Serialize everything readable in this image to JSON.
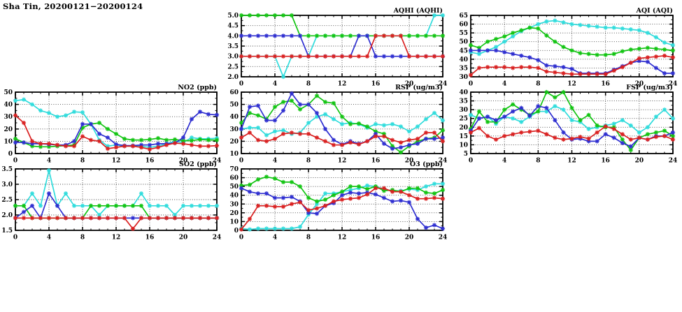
{
  "page_title": "Sha Tin, 20200121−20200124",
  "colors": {
    "red": "#d92020",
    "green": "#12c412",
    "blue": "#2e2ed0",
    "cyan": "#30dcdc",
    "axis": "#000000",
    "grid": "#474747",
    "text": "#000000"
  },
  "chart_data": [
    {
      "id": "aqhi",
      "type": "line",
      "title": "AQHI (AQHI)",
      "row": 0,
      "col": 1,
      "xlim": [
        0,
        24
      ],
      "xtick_major": 4,
      "xtick_minor": 1,
      "ylim": [
        2.0,
        5.0
      ],
      "ytick": 0.5,
      "ydec": 1,
      "grid": true,
      "legend": "none",
      "series": [
        {
          "name": "cyan",
          "values": [
            3,
            3,
            3,
            3,
            3,
            2,
            3,
            3,
            3,
            4,
            4,
            4,
            4,
            4,
            4,
            4,
            4,
            4,
            4,
            4,
            4,
            4,
            4,
            5,
            5
          ]
        },
        {
          "name": "green",
          "values": [
            5,
            5,
            5,
            5,
            5,
            5,
            5,
            4,
            4,
            4,
            4,
            4,
            4,
            4,
            4,
            4,
            4,
            4,
            4,
            4,
            4,
            4,
            4,
            4,
            4
          ]
        },
        {
          "name": "blue",
          "values": [
            4,
            4,
            4,
            4,
            4,
            4,
            4,
            4,
            3,
            3,
            3,
            3,
            3,
            3,
            4,
            4,
            3,
            3,
            3,
            3,
            3,
            3,
            3,
            3,
            3
          ]
        },
        {
          "name": "red",
          "values": [
            3,
            3,
            3,
            3,
            3,
            3,
            3,
            3,
            3,
            3,
            3,
            3,
            3,
            3,
            3,
            3,
            4,
            4,
            4,
            4,
            3,
            3,
            3,
            3,
            3
          ]
        }
      ]
    },
    {
      "id": "aqi",
      "type": "line",
      "title": "AQI (AQI)",
      "row": 0,
      "col": 2,
      "xlim": [
        0,
        24
      ],
      "xtick_major": 4,
      "xtick_minor": 1,
      "ylim": [
        30,
        65
      ],
      "ytick": 5,
      "ydec": 0,
      "grid": true,
      "legend": "none",
      "series": [
        {
          "name": "cyan",
          "values": [
            44,
            43,
            45,
            47,
            50,
            53,
            56,
            58,
            60,
            61.5,
            62,
            61,
            60,
            59.5,
            59,
            58.5,
            58,
            58,
            57.5,
            57,
            56.5,
            55,
            52.5,
            49.5,
            48
          ]
        },
        {
          "name": "green",
          "values": [
            48,
            46.5,
            50,
            51.5,
            53,
            55,
            56.5,
            58,
            57.5,
            53.5,
            50,
            47,
            45,
            43.5,
            43,
            42.5,
            42.5,
            43,
            44.5,
            45.5,
            46,
            46.5,
            46,
            45.5,
            45
          ]
        },
        {
          "name": "blue",
          "values": [
            45,
            45,
            45,
            45,
            44,
            43,
            42,
            41,
            39.5,
            36.5,
            36,
            35.5,
            34.5,
            32,
            32,
            32,
            32,
            34,
            36,
            38,
            39,
            38.5,
            35,
            32,
            32
          ]
        },
        {
          "name": "red",
          "values": [
            31,
            35,
            35.5,
            35.5,
            35.5,
            35,
            35.5,
            35.5,
            35,
            33,
            32.5,
            32,
            31.5,
            31.5,
            31.5,
            31.5,
            31.5,
            33.5,
            35.5,
            38,
            40.5,
            41,
            41.5,
            42,
            41
          ]
        }
      ]
    },
    {
      "id": "no2",
      "type": "line",
      "title": "NO2 (ppb)",
      "row": 1,
      "col": 0,
      "xlim": [
        0,
        24
      ],
      "xtick_major": 4,
      "xtick_minor": 1,
      "ylim": [
        0,
        50
      ],
      "ytick": 10,
      "ydec": 0,
      "grid": true,
      "legend": "none",
      "series": [
        {
          "name": "cyan",
          "values": [
            43,
            44,
            40,
            35,
            33,
            30,
            31,
            34,
            33.5,
            24,
            11,
            6,
            7,
            6,
            6,
            6,
            5,
            6,
            8,
            10,
            9,
            13,
            12,
            12,
            12.5
          ]
        },
        {
          "name": "green",
          "values": [
            12,
            9,
            6,
            5.5,
            5.5,
            6,
            6.5,
            7,
            21,
            24,
            25,
            20,
            16,
            12,
            11,
            11,
            11.5,
            12.5,
            11,
            11.5,
            10.5,
            10.5,
            11.5,
            11,
            11
          ]
        },
        {
          "name": "blue",
          "values": [
            9,
            9,
            8,
            8,
            7.5,
            7,
            7,
            10,
            24,
            24,
            16,
            13,
            7.5,
            6.5,
            6.5,
            7,
            7,
            8,
            8,
            8.5,
            13,
            28,
            34,
            32,
            31.5
          ]
        },
        {
          "name": "red",
          "values": [
            31,
            25,
            10,
            8,
            8,
            7,
            6,
            6,
            14,
            11,
            10,
            4,
            5,
            6,
            6,
            5,
            3.5,
            5,
            7,
            8.5,
            8,
            7,
            6,
            6,
            6.5
          ]
        }
      ]
    },
    {
      "id": "rsp",
      "type": "line",
      "title": "RSP (ug/m3)",
      "row": 1,
      "col": 1,
      "xlim": [
        0,
        24
      ],
      "xtick_major": 4,
      "xtick_minor": 1,
      "ylim": [
        10,
        60
      ],
      "ytick": 10,
      "ydec": 0,
      "grid": true,
      "legend": "none",
      "series": [
        {
          "name": "cyan",
          "values": [
            30,
            31,
            31,
            25,
            28,
            29,
            26,
            27,
            35,
            40,
            42,
            38,
            34,
            35,
            34,
            31,
            34,
            33,
            34,
            32,
            28,
            32,
            38,
            43,
            37
          ]
        },
        {
          "name": "green",
          "values": [
            35,
            43,
            41,
            38,
            48,
            52,
            53,
            46,
            50,
            57,
            52,
            51,
            40,
            34,
            34.5,
            32,
            28,
            26,
            16,
            11,
            16,
            20,
            22,
            23,
            29
          ]
        },
        {
          "name": "blue",
          "values": [
            30,
            48,
            49,
            37,
            37,
            45,
            59,
            50,
            50,
            43,
            30,
            21,
            17.5,
            20,
            18,
            20,
            26,
            18,
            14,
            15,
            17,
            18,
            22,
            22,
            23
          ]
        },
        {
          "name": "red",
          "values": [
            23,
            27,
            21,
            20,
            22,
            26,
            27,
            26,
            26,
            23,
            20,
            17,
            17,
            19,
            17.5,
            20,
            24,
            24,
            21,
            19,
            21,
            22,
            27,
            27,
            20
          ]
        }
      ]
    },
    {
      "id": "fsp",
      "type": "line",
      "title": "FSP (ug/m3)",
      "row": 1,
      "col": 2,
      "xlim": [
        0,
        24
      ],
      "xtick_major": 4,
      "xtick_minor": 1,
      "ylim": [
        5,
        40
      ],
      "ytick": 5,
      "ydec": 0,
      "grid": true,
      "legend": "none",
      "series": [
        {
          "name": "cyan",
          "values": [
            27,
            25,
            26,
            22,
            26,
            25,
            23,
            26,
            29,
            29,
            32,
            30,
            24,
            23,
            19,
            20,
            21,
            22,
            24,
            21,
            17,
            20,
            26,
            30,
            25
          ]
        },
        {
          "name": "green",
          "values": [
            19,
            29,
            23,
            23,
            30,
            33,
            30,
            27,
            29,
            40,
            37,
            40,
            31,
            24,
            27,
            21,
            20,
            20,
            13,
            7,
            14,
            16,
            17,
            18,
            15
          ]
        },
        {
          "name": "blue",
          "values": [
            18,
            25,
            26,
            24,
            26,
            29,
            31,
            26.5,
            32,
            31,
            24,
            17,
            13,
            13.5,
            12,
            12,
            16,
            14,
            11,
            9,
            14,
            13,
            15,
            15,
            17
          ]
        },
        {
          "name": "red",
          "values": [
            17,
            19.5,
            15,
            13,
            15,
            16,
            17,
            17.5,
            18,
            16,
            14,
            13,
            13.5,
            14.5,
            13.5,
            17,
            20.5,
            19,
            16,
            13,
            14,
            13,
            14.5,
            15,
            13
          ]
        }
      ]
    },
    {
      "id": "so2",
      "type": "line",
      "title": "SO2 (ppb)",
      "row": 2,
      "col": 0,
      "xlim": [
        0,
        24
      ],
      "xtick_major": 4,
      "xtick_minor": 1,
      "ylim": [
        1.5,
        3.5
      ],
      "ytick": 0.5,
      "ydec": 1,
      "grid": true,
      "legend": "none",
      "series": [
        {
          "name": "cyan",
          "values": [
            2.3,
            2.3,
            2.7,
            2.3,
            3.45,
            2.3,
            2.7,
            2.3,
            2.3,
            2.3,
            2.0,
            2.3,
            2.3,
            2.3,
            2.3,
            2.7,
            2.3,
            2.3,
            2.3,
            2.0,
            2.3,
            2.3,
            2.3,
            2.3,
            2.3
          ]
        },
        {
          "name": "green",
          "values": [
            2.3,
            2.3,
            1.9,
            1.9,
            1.9,
            1.9,
            1.9,
            1.9,
            1.9,
            2.3,
            2.3,
            2.3,
            2.3,
            2.3,
            2.3,
            2.3,
            1.9,
            1.9,
            1.9,
            1.9,
            1.9,
            1.9,
            1.9,
            1.9,
            1.9
          ]
        },
        {
          "name": "blue",
          "values": [
            1.9,
            2.1,
            2.3,
            1.9,
            2.7,
            2.3,
            1.9,
            1.9,
            1.9,
            1.9,
            1.9,
            1.9,
            1.9,
            1.9,
            1.9,
            1.9,
            1.9,
            1.9,
            1.9,
            1.9,
            1.9,
            1.9,
            1.9,
            1.9,
            1.9
          ]
        },
        {
          "name": "red",
          "values": [
            1.9,
            1.9,
            1.9,
            1.9,
            1.9,
            1.9,
            1.9,
            1.9,
            1.9,
            1.9,
            1.9,
            1.9,
            1.9,
            1.9,
            1.55,
            1.9,
            1.9,
            1.9,
            1.9,
            1.9,
            1.9,
            1.9,
            1.9,
            1.9,
            1.9
          ]
        }
      ]
    },
    {
      "id": "o3",
      "type": "line",
      "title": "O3 (ppb)",
      "row": 2,
      "col": 1,
      "xlim": [
        0,
        24
      ],
      "xtick_major": 4,
      "xtick_minor": 1,
      "ylim": [
        0,
        70
      ],
      "ytick": 10,
      "ydec": 0,
      "grid": true,
      "legend": "none",
      "series": [
        {
          "name": "cyan",
          "values": [
            2,
            1,
            2,
            2,
            2,
            2,
            2,
            4,
            18,
            30,
            42,
            42,
            44,
            46,
            48,
            51,
            50,
            47,
            45,
            45,
            47,
            46,
            50,
            53,
            53
          ]
        },
        {
          "name": "green",
          "values": [
            51,
            52,
            58,
            61,
            59,
            55,
            55,
            50,
            37,
            33,
            35,
            40,
            44,
            50,
            50,
            47,
            50,
            45,
            46,
            44,
            48,
            48,
            43,
            42,
            46
          ]
        },
        {
          "name": "blue",
          "values": [
            48,
            44,
            42,
            42,
            37,
            37,
            38,
            33,
            20,
            19,
            28,
            31,
            40,
            43,
            42,
            43,
            41,
            37,
            33,
            34,
            32,
            13,
            3,
            6,
            2
          ]
        },
        {
          "name": "red",
          "values": [
            1,
            13,
            28,
            28,
            27,
            27,
            30,
            32,
            23,
            25,
            28,
            33,
            35,
            36,
            37,
            41,
            48,
            48,
            44,
            44,
            40,
            36,
            36,
            37,
            36
          ]
        }
      ]
    }
  ]
}
